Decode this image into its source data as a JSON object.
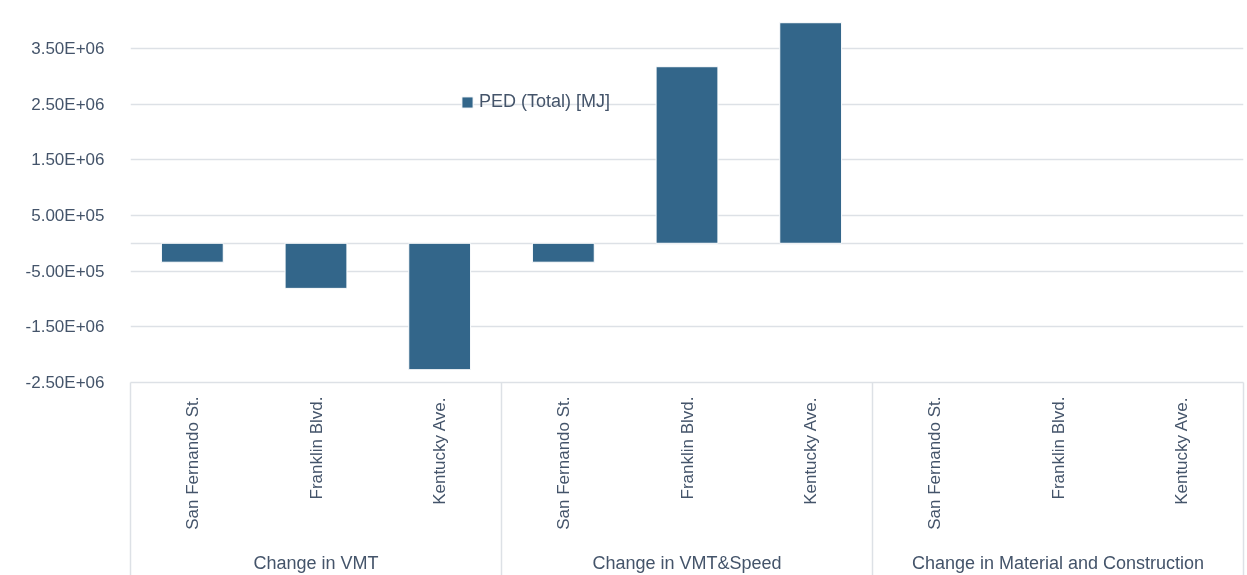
{
  "chart_data": {
    "type": "bar",
    "categories": [
      "San Fernando St.",
      "Franklin Blvd.",
      "Kentucky Ave.",
      "San Fernando St.",
      "Franklin Blvd.",
      "Kentucky Ave.",
      "San Fernando St.",
      "Franklin Blvd.",
      "Kentucky Ave."
    ],
    "series": [
      {
        "name": "PED (Total) [MJ]",
        "color": "#33668a",
        "values": [
          -340000,
          -810000,
          -2270000,
          -340000,
          3170000,
          3960000,
          null,
          null,
          null
        ]
      }
    ],
    "annotations": [
      "Change in VMT",
      "Change in VMT&Speed",
      "Change in Material and Construction"
    ],
    "ylim": [
      -2500000,
      4000000
    ],
    "yticks": [
      {
        "value": 3500000,
        "label": "3.50E+06"
      },
      {
        "value": 2500000,
        "label": "2.50E+06"
      },
      {
        "value": 1500000,
        "label": "1.50E+06"
      },
      {
        "value": 500000,
        "label": "5.00E+05"
      },
      {
        "value": 0,
        "label": null
      },
      {
        "value": -500000,
        "label": "-5.00E+05"
      },
      {
        "value": -1500000,
        "label": "-1.50E+06"
      },
      {
        "value": -2500000,
        "label": "-2.50E+06"
      }
    ],
    "grid": "y",
    "legend": "top"
  }
}
